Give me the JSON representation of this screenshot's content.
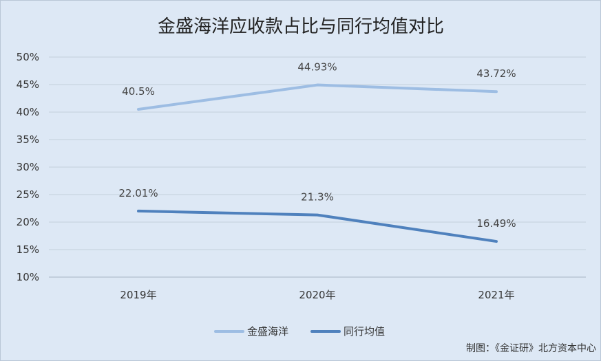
{
  "chart_data": {
    "type": "line",
    "title": "金盛海洋应收款占比与同行均值对比",
    "categories": [
      "2019年",
      "2020年",
      "2021年"
    ],
    "series": [
      {
        "name": "金盛海洋",
        "values": [
          40.5,
          44.93,
          43.72
        ],
        "labels": [
          "40.5%",
          "44.93%",
          "43.72%"
        ],
        "color": "#9dbde3"
      },
      {
        "name": "同行均值",
        "values": [
          22.01,
          21.3,
          16.49
        ],
        "labels": [
          "22.01%",
          "21.3%",
          "16.49%"
        ],
        "color": "#4f81bd"
      }
    ],
    "ylim": [
      10,
      50
    ],
    "yticks": [
      "10%",
      "15%",
      "20%",
      "25%",
      "30%",
      "35%",
      "40%",
      "45%",
      "50%"
    ],
    "ytick_values": [
      10,
      15,
      20,
      25,
      30,
      35,
      40,
      45,
      50
    ],
    "grid": true,
    "legend": "bottom",
    "xlabel": "",
    "ylabel": ""
  },
  "credit": "制图：《金证研》北方资本中心"
}
